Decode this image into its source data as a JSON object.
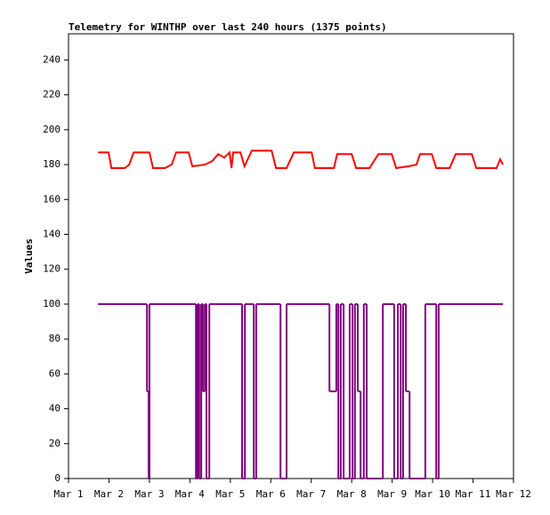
{
  "chart_data": {
    "type": "line",
    "title": "Telemetry for WINTHP over last 240 hours (1375 points)",
    "y_label": "Values",
    "xlim": [
      1,
      12
    ],
    "xticks": [
      {
        "value": 1,
        "label": "Mar 1"
      },
      {
        "value": 2,
        "label": "Mar 2"
      },
      {
        "value": 3,
        "label": "Mar 3"
      },
      {
        "value": 4,
        "label": "Mar 4"
      },
      {
        "value": 5,
        "label": "Mar 5"
      },
      {
        "value": 6,
        "label": "Mar 6"
      },
      {
        "value": 7,
        "label": "Mar 7"
      },
      {
        "value": 8,
        "label": "Mar 8"
      },
      {
        "value": 9,
        "label": "Mar 9"
      },
      {
        "value": 10,
        "label": "Mar 10"
      },
      {
        "value": 11,
        "label": "Mar 11"
      },
      {
        "value": 12,
        "label": "Mar 12"
      }
    ],
    "ylim": [
      0,
      255
    ],
    "yticks": [
      0,
      20,
      40,
      60,
      80,
      100,
      120,
      140,
      160,
      180,
      200,
      220,
      240
    ],
    "grid": false,
    "series": [
      {
        "color": "#ff0000",
        "step": false,
        "x": [
          1.73,
          1.99,
          2.06,
          2.39,
          2.5,
          2.61,
          3.0,
          3.09,
          3.38,
          3.55,
          3.66,
          3.97,
          4.06,
          4.37,
          4.55,
          4.7,
          4.85,
          4.98,
          5.03,
          5.07,
          5.25,
          5.35,
          5.53,
          6.02,
          6.13,
          6.39,
          6.57,
          7.01,
          7.09,
          7.56,
          7.64,
          8.0,
          8.11,
          8.44,
          8.66,
          8.99,
          9.1,
          9.4,
          9.6,
          9.69,
          9.98,
          10.09,
          10.42,
          10.57,
          10.97,
          11.08,
          11.58,
          11.67,
          11.74
        ],
        "values": [
          187,
          187,
          178,
          178,
          180,
          187,
          187,
          178,
          178,
          180,
          187,
          187,
          179,
          180,
          182,
          186,
          184,
          187,
          178,
          187,
          187,
          179,
          188,
          188,
          178,
          178,
          187,
          187,
          178,
          178,
          186,
          186,
          178,
          178,
          186,
          186,
          178,
          179,
          180,
          186,
          186,
          178,
          178,
          186,
          186,
          178,
          178,
          183,
          180
        ]
      },
      {
        "color": "#800080",
        "step": true,
        "x": [
          1.73,
          2.94,
          2.98,
          3.0,
          4.15,
          4.19,
          4.23,
          4.28,
          4.32,
          4.37,
          4.41,
          4.48,
          5.29,
          5.36,
          5.58,
          5.64,
          6.24,
          6.39,
          7.45,
          7.62,
          7.67,
          7.73,
          7.8,
          7.95,
          8.02,
          8.08,
          8.15,
          8.22,
          8.3,
          8.37,
          8.77,
          9.05,
          9.14,
          9.21,
          9.27,
          9.34,
          9.43,
          9.82,
          10.09,
          10.15,
          11.74
        ],
        "values": [
          100,
          50,
          0,
          100,
          0,
          100,
          0,
          100,
          50,
          100,
          0,
          100,
          0,
          100,
          0,
          100,
          0,
          100,
          50,
          100,
          0,
          100,
          0,
          100,
          0,
          100,
          50,
          0,
          100,
          0,
          100,
          0,
          100,
          0,
          100,
          50,
          0,
          100,
          0,
          100,
          100
        ]
      }
    ]
  }
}
